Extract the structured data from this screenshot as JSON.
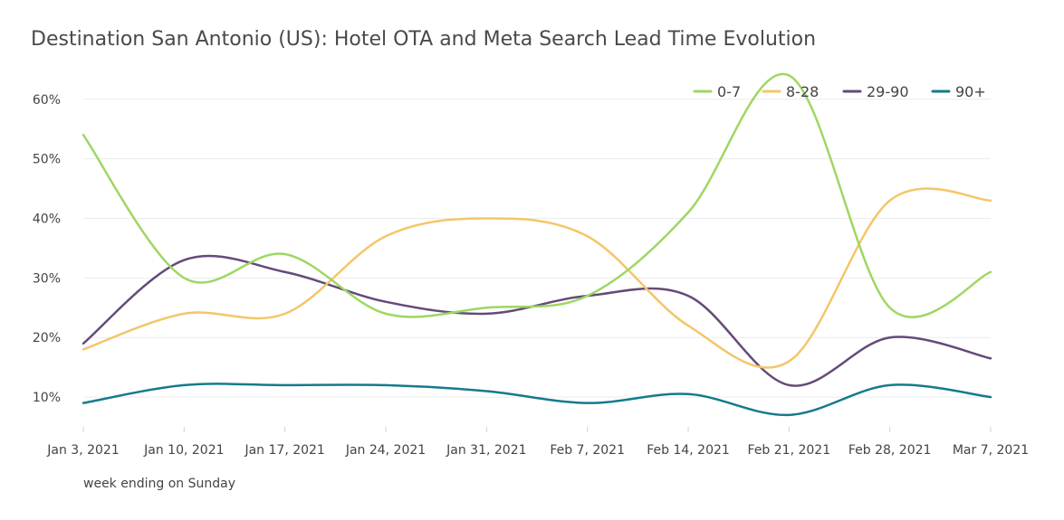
{
  "chart_data": {
    "type": "line",
    "title": "Destination San Antonio (US): Hotel OTA and Meta Search Lead Time Evolution",
    "xlabel": "week ending on Sunday",
    "ylabel": "",
    "categories": [
      "Jan 3, 2021",
      "Jan 10, 2021",
      "Jan 17, 2021",
      "Jan 24, 2021",
      "Jan 31, 2021",
      "Feb 7, 2021",
      "Feb 14, 2021",
      "Feb 21, 2021",
      "Feb 28, 2021",
      "Mar 7, 2021"
    ],
    "yticks": [
      10,
      20,
      30,
      40,
      50,
      60
    ],
    "ytick_labels": [
      "10%",
      "20%",
      "30%",
      "40%",
      "50%",
      "60%"
    ],
    "ylim": [
      5,
      63
    ],
    "grid": true,
    "legend_position": "top-right",
    "series": [
      {
        "name": "0-7",
        "color": "#9ed763",
        "values": [
          54,
          30,
          34,
          24,
          25,
          27,
          41,
          64,
          25,
          31
        ]
      },
      {
        "name": "8-28",
        "color": "#f4c66a",
        "values": [
          18,
          24,
          24,
          37,
          40,
          37,
          22,
          16,
          43,
          43
        ]
      },
      {
        "name": "29-90",
        "color": "#654a79",
        "values": [
          19,
          33,
          31,
          26,
          24,
          27,
          27,
          12,
          20,
          16.5
        ]
      },
      {
        "name": "90+",
        "color": "#157a8c",
        "values": [
          9,
          12,
          12,
          12,
          11,
          9,
          10.5,
          7,
          12,
          10
        ]
      }
    ]
  }
}
